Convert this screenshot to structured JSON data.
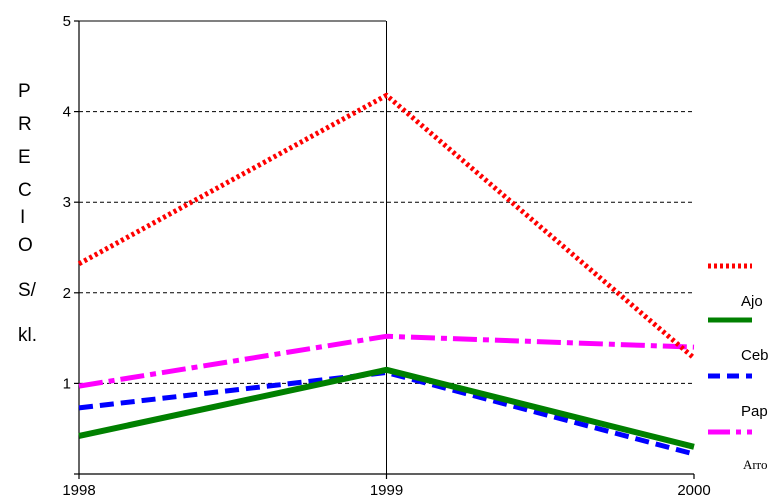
{
  "chart_data": {
    "type": "line",
    "x": [
      1998,
      1999,
      2000
    ],
    "x_tick_labels": [
      "1998",
      "1999",
      "2000"
    ],
    "y_tick_labels": [
      "1",
      "2",
      "3",
      "4",
      "5"
    ],
    "ylim": [
      0,
      5
    ],
    "ylabel_lines": [
      "P",
      "R",
      "E",
      "C",
      "I",
      "O",
      "S/",
      "kl."
    ],
    "grid": "horizontal dashed, vertical solid at 1999",
    "legend_position": "right",
    "series": [
      {
        "name": "",
        "values": [
          2.32,
          4.18,
          1.28
        ],
        "color": "#ff0000",
        "style": "dotted"
      },
      {
        "name": "Ajo",
        "values": [
          0.42,
          1.15,
          0.3
        ],
        "color": "#008000",
        "style": "solid"
      },
      {
        "name": "Ceb",
        "values": [
          0.73,
          1.12,
          0.22
        ],
        "color": "#0000ff",
        "style": "dashed"
      },
      {
        "name": "Pap",
        "values": [
          0.97,
          1.52,
          1.4
        ],
        "color": "#ff00ff",
        "style": "dash-dot"
      }
    ],
    "legend_extra": "Arro"
  }
}
